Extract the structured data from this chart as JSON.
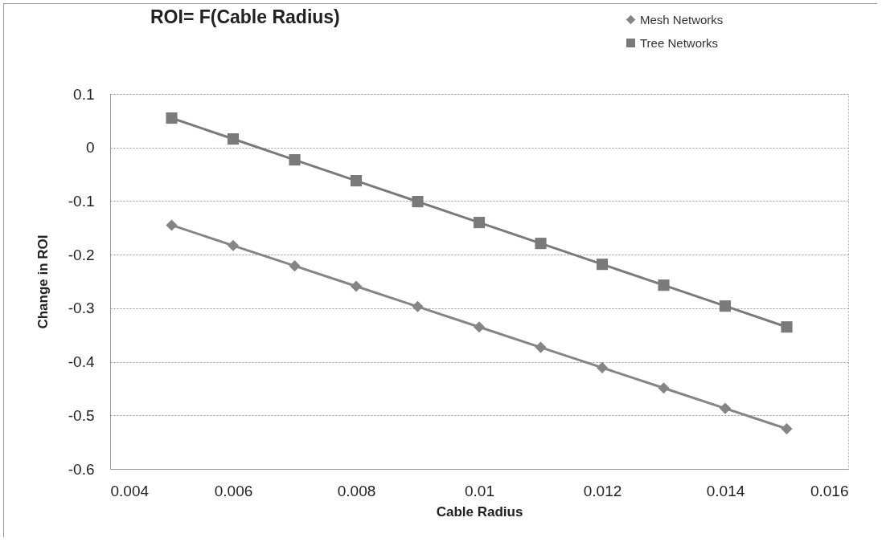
{
  "chart_data": {
    "type": "line",
    "title": "ROI= F(Cable Radius)",
    "xlabel": "Cable Radius",
    "ylabel": "Change in ROI",
    "x": [
      0.005,
      0.006,
      0.007,
      0.008,
      0.009,
      0.01,
      0.011,
      0.012,
      0.013,
      0.014,
      0.015
    ],
    "series": [
      {
        "name": "Mesh Networks",
        "color": "#858585",
        "marker": "diamond",
        "values": [
          -0.145,
          -0.183,
          -0.221,
          -0.259,
          -0.297,
          -0.335,
          -0.373,
          -0.411,
          -0.449,
          -0.487,
          -0.525
        ]
      },
      {
        "name": "Tree Networks",
        "color": "#7a7a7a",
        "marker": "square",
        "values": [
          0.055,
          0.016,
          -0.023,
          -0.062,
          -0.101,
          -0.14,
          -0.179,
          -0.218,
          -0.257,
          -0.296,
          -0.335
        ]
      }
    ],
    "xlim": [
      0.004,
      0.016
    ],
    "xticks": [
      0.004,
      0.006,
      0.008,
      0.01,
      0.012,
      0.014,
      0.016
    ],
    "ylim": [
      -0.6,
      0.1
    ],
    "yticks": [
      0.1,
      0,
      -0.1,
      -0.2,
      -0.3,
      -0.4,
      -0.5,
      -0.6
    ],
    "grid": "y",
    "legend": "top right",
    "line_style": "solid"
  }
}
